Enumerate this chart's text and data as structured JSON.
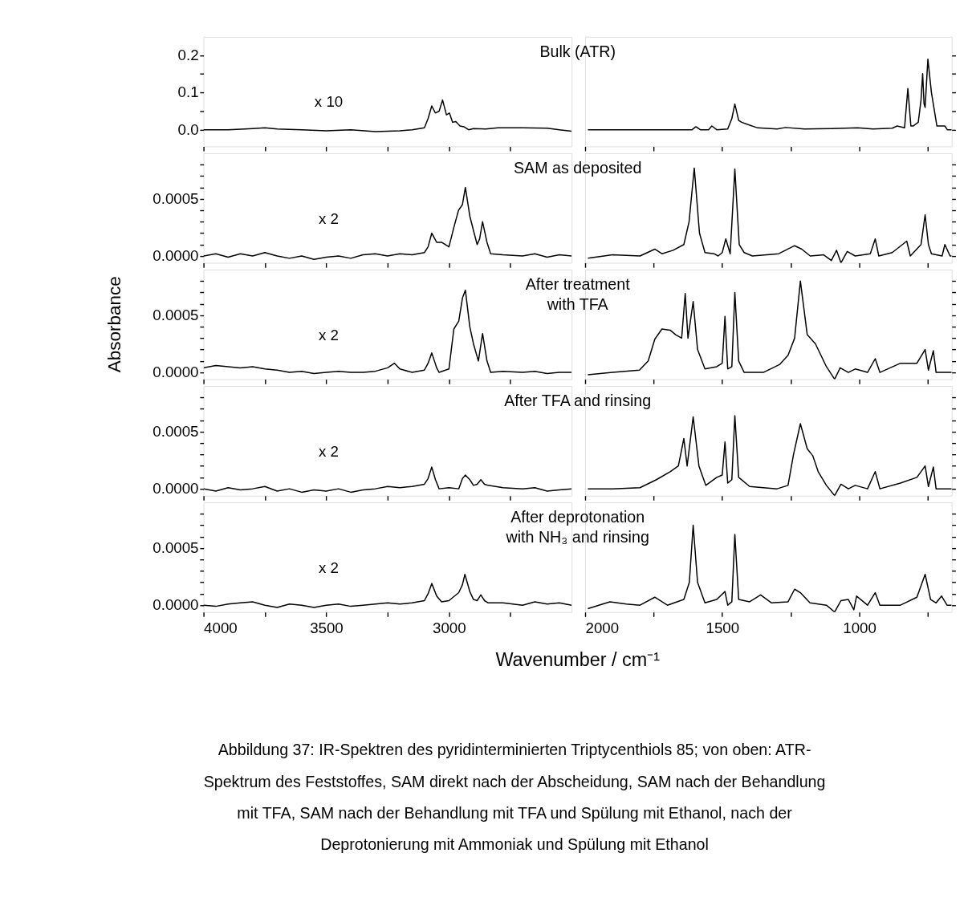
{
  "chart_data": [
    {
      "type": "line",
      "color": "#000000",
      "annotations": [
        "x 10"
      ],
      "tick_labels": "y",
      "xlim": [
        4000,
        2500
      ],
      "xticks": [
        4000,
        {
          "value": 3750,
          "label": null
        },
        3500,
        {
          "value": 3250,
          "label": null
        },
        3000,
        {
          "value": 2750,
          "label": null
        }
      ],
      "ylim": [
        -0.045,
        0.25
      ],
      "yticks": [
        {
          "value": 0,
          "label": "0.0"
        },
        {
          "value": 0.05,
          "label": null
        },
        {
          "value": 0.1,
          "label": "0.1"
        },
        {
          "value": 0.15,
          "label": null
        },
        {
          "value": 0.2,
          "label": "0.2"
        }
      ],
      "x": [
        4000,
        3900,
        3800,
        3750,
        3700,
        3600,
        3500,
        3400,
        3300,
        3200,
        3150,
        3100,
        3085,
        3070,
        3055,
        3040,
        3026,
        3010,
        2998,
        2985,
        2972,
        2955,
        2939,
        2920,
        2900,
        2850,
        2800,
        2700,
        2600,
        2550,
        2500
      ],
      "values": [
        0.0,
        0.0,
        0.003,
        0.005,
        0.002,
        0.0,
        -0.003,
        0.0,
        -0.005,
        -0.003,
        0.0,
        0.005,
        0.03,
        0.064,
        0.045,
        0.05,
        0.08,
        0.04,
        0.045,
        0.02,
        0.022,
        0.01,
        0.008,
        0.0,
        0.003,
        0.002,
        0.005,
        0.005,
        0.004,
        0.0,
        -0.004
      ]
    },
    {
      "type": "line",
      "color": "#000000",
      "title": "Bulk (ATR)",
      "tick_labels": false,
      "xlim": [
        2000,
        663
      ],
      "xticks": [
        2000,
        {
          "value": 1750,
          "label": null
        },
        1500,
        {
          "value": 1250,
          "label": null
        },
        1000,
        {
          "value": 750,
          "label": null
        }
      ],
      "ylim": [
        -0.045,
        0.25
      ],
      "yticks": [
        0,
        0.05,
        0.1,
        0.15,
        0.2
      ],
      "x": [
        1990,
        1800,
        1700,
        1610,
        1596,
        1580,
        1550,
        1538,
        1520,
        1480,
        1465,
        1454,
        1440,
        1429,
        1410,
        1371,
        1300,
        1269,
        1200,
        1100,
        1006,
        950,
        880,
        862,
        835,
        823,
        812,
        804,
        785,
        775,
        769,
        764,
        760,
        750,
        737,
        717,
        688,
        679,
        663
      ],
      "values": [
        0.0,
        0.0,
        0.0,
        0.0,
        0.008,
        0.0,
        0.0,
        0.01,
        0.0,
        0.002,
        0.03,
        0.069,
        0.025,
        0.02,
        0.015,
        0.005,
        0.002,
        0.006,
        0.002,
        0.003,
        0.005,
        0.002,
        0.004,
        0.01,
        0.005,
        0.111,
        0.01,
        0.01,
        0.02,
        0.08,
        0.151,
        0.07,
        0.06,
        0.19,
        0.1,
        0.01,
        0.01,
        0.0,
        0.0
      ]
    },
    {
      "type": "line",
      "color": "#000000",
      "annotations": [
        "x 2"
      ],
      "tick_labels": "y",
      "xlim": [
        4000,
        2500
      ],
      "xticks": [
        4000,
        {
          "value": 3750,
          "label": null
        },
        3500,
        {
          "value": 3250,
          "label": null
        },
        3000,
        {
          "value": 2750,
          "label": null
        }
      ],
      "ylim": [
        -6e-05,
        0.0009
      ],
      "yticks": [
        {
          "value": 0,
          "label": "0.0000"
        },
        {
          "value": 0.0001,
          "label": null
        },
        {
          "value": 0.0002,
          "label": null
        },
        {
          "value": 0.0003,
          "label": null
        },
        {
          "value": 0.0004,
          "label": null
        },
        {
          "value": 0.0005,
          "label": "0.0005"
        },
        {
          "value": 0.0006,
          "label": null
        },
        {
          "value": 0.0007,
          "label": null
        },
        {
          "value": 0.0008,
          "label": null
        }
      ],
      "x": [
        4000,
        3950,
        3900,
        3850,
        3800,
        3750,
        3700,
        3650,
        3600,
        3550,
        3500,
        3450,
        3400,
        3350,
        3300,
        3250,
        3200,
        3150,
        3100,
        3085,
        3070,
        3050,
        3030,
        3000,
        2980,
        2961,
        2945,
        2933,
        2915,
        2896,
        2885,
        2875,
        2863,
        2845,
        2830,
        2780,
        2700,
        2650,
        2600,
        2550,
        2500
      ],
      "values": [
        0.0,
        2e-05,
        -1e-05,
        2e-05,
        0.0,
        3e-05,
        0.0,
        -2e-05,
        0.0,
        -3e-05,
        -1e-05,
        0.0,
        -2e-05,
        1e-05,
        2e-05,
        0.0,
        2e-05,
        1e-05,
        3e-05,
        8e-05,
        0.0002,
        0.00012,
        0.00012,
        8e-05,
        0.00025,
        0.0004,
        0.00045,
        0.0006,
        0.00035,
        0.00019,
        0.0001,
        0.00015,
        0.0003,
        0.00012,
        2e-05,
        1e-05,
        0.0,
        2e-05,
        -1e-05,
        1e-05,
        0.0
      ]
    },
    {
      "type": "line",
      "color": "#000000",
      "title": "SAM as deposited",
      "tick_labels": false,
      "xlim": [
        2000,
        663
      ],
      "xticks": [
        2000,
        {
          "value": 1750,
          "label": null
        },
        1500,
        {
          "value": 1250,
          "label": null
        },
        1000,
        {
          "value": 750,
          "label": null
        }
      ],
      "ylim": [
        -6e-05,
        0.0009
      ],
      "yticks": [
        0,
        0.0001,
        0.0002,
        0.0003,
        0.0004,
        0.0005,
        0.0006,
        0.0007,
        0.0008
      ],
      "x": [
        1990,
        1900,
        1800,
        1746,
        1720,
        1679,
        1640,
        1621,
        1602,
        1583,
        1563,
        1530,
        1515,
        1500,
        1487,
        1471,
        1454,
        1438,
        1420,
        1390,
        1294,
        1236,
        1210,
        1179,
        1130,
        1102,
        1083,
        1067,
        1044,
        1015,
        960,
        942,
        929,
        880,
        827,
        814,
        775,
        760,
        748,
        737,
        698,
        688,
        669,
        663
      ],
      "values": [
        -2e-05,
        1e-05,
        0.0,
        6e-05,
        2e-05,
        5e-05,
        0.0001,
        0.0003,
        0.00077,
        0.0002,
        3e-05,
        2e-05,
        0.0,
        3e-05,
        0.00015,
        2e-05,
        0.00076,
        0.0001,
        3e-05,
        0.0,
        2e-05,
        9e-05,
        6e-05,
        0.0,
        1e-05,
        -4e-05,
        5e-05,
        -6e-05,
        4e-05,
        0.0,
        2e-05,
        0.00015,
        0.0,
        3e-05,
        0.00013,
        0.0,
        0.0001,
        0.00036,
        0.0001,
        2e-05,
        0.0,
        0.0001,
        0.0,
        0.0
      ]
    },
    {
      "type": "line",
      "color": "#000000",
      "annotations": [
        "x 2"
      ],
      "ylabel": "Absorbance",
      "tick_labels": "y",
      "xlim": [
        4000,
        2500
      ],
      "xticks": [
        4000,
        {
          "value": 3750,
          "label": null
        },
        3500,
        {
          "value": 3250,
          "label": null
        },
        3000,
        {
          "value": 2750,
          "label": null
        }
      ],
      "ylim": [
        -6e-05,
        0.0009
      ],
      "yticks": [
        {
          "value": 0,
          "label": "0.0000"
        },
        {
          "value": 0.0001,
          "label": null
        },
        {
          "value": 0.0002,
          "label": null
        },
        {
          "value": 0.0003,
          "label": null
        },
        {
          "value": 0.0004,
          "label": null
        },
        {
          "value": 0.0005,
          "label": "0.0005"
        },
        {
          "value": 0.0006,
          "label": null
        },
        {
          "value": 0.0007,
          "label": null
        },
        {
          "value": 0.0008,
          "label": null
        }
      ],
      "x": [
        4000,
        3950,
        3900,
        3850,
        3800,
        3750,
        3700,
        3650,
        3600,
        3550,
        3500,
        3450,
        3400,
        3350,
        3300,
        3250,
        3222,
        3200,
        3150,
        3100,
        3085,
        3070,
        3050,
        3040,
        3000,
        2980,
        2960,
        2945,
        2933,
        2915,
        2900,
        2880,
        2863,
        2845,
        2830,
        2780,
        2700,
        2650,
        2600,
        2550,
        2500
      ],
      "values": [
        4e-05,
        6e-05,
        5e-05,
        4e-05,
        5e-05,
        3e-05,
        2e-05,
        0.0,
        1e-05,
        -1e-05,
        0.0,
        1e-05,
        0.0,
        0.0,
        1e-05,
        4e-05,
        8e-05,
        3e-05,
        0.0,
        2e-05,
        8e-05,
        0.00017,
        4e-05,
        0.0,
        3e-05,
        0.00038,
        0.00045,
        0.00065,
        0.00072,
        0.0004,
        0.00025,
        0.0001,
        0.00034,
        0.0001,
        0.0,
        1e-05,
        0.0,
        1e-05,
        -1e-05,
        0.0,
        0.0
      ]
    },
    {
      "type": "line",
      "color": "#000000",
      "title": "After treatment\nwith TFA",
      "tick_labels": false,
      "xlim": [
        2000,
        663
      ],
      "xticks": [
        2000,
        {
          "value": 1750,
          "label": null
        },
        1500,
        {
          "value": 1250,
          "label": null
        },
        1000,
        {
          "value": 750,
          "label": null
        }
      ],
      "ylim": [
        -6e-05,
        0.0009
      ],
      "yticks": [
        0,
        0.0001,
        0.0002,
        0.0003,
        0.0004,
        0.0005,
        0.0006,
        0.0007,
        0.0008
      ],
      "x": [
        1990,
        1900,
        1802,
        1770,
        1746,
        1720,
        1690,
        1670,
        1648,
        1635,
        1625,
        1606,
        1590,
        1563,
        1520,
        1500,
        1490,
        1480,
        1465,
        1454,
        1440,
        1420,
        1350,
        1290,
        1260,
        1236,
        1215,
        1190,
        1160,
        1120,
        1090,
        1070,
        1040,
        1015,
        970,
        942,
        925,
        850,
        790,
        760,
        748,
        730,
        720,
        680,
        663
      ],
      "values": [
        -2e-05,
        0.0,
        2e-05,
        0.0001,
        0.00029,
        0.00038,
        0.00037,
        0.00033,
        0.0003,
        0.00069,
        0.0003,
        0.00062,
        0.0002,
        3e-05,
        5e-05,
        8e-05,
        0.00049,
        3e-05,
        5e-05,
        0.0007,
        0.0001,
        0.0,
        0.0,
        7e-05,
        0.00015,
        0.0003,
        0.0008,
        0.00033,
        0.00025,
        5e-05,
        -6e-05,
        4e-05,
        0.0,
        3e-05,
        0.0,
        0.00012,
        0.0,
        8e-05,
        8e-05,
        0.0002,
        2e-05,
        0.00019,
        0.0,
        0.0,
        0.0
      ]
    },
    {
      "type": "line",
      "color": "#000000",
      "annotations": [
        "x 2"
      ],
      "tick_labels": "y",
      "xlim": [
        4000,
        2500
      ],
      "xticks": [
        4000,
        {
          "value": 3750,
          "label": null
        },
        3500,
        {
          "value": 3250,
          "label": null
        },
        3000,
        {
          "value": 2750,
          "label": null
        }
      ],
      "ylim": [
        -6e-05,
        0.0009
      ],
      "yticks": [
        {
          "value": 0,
          "label": "0.0000"
        },
        {
          "value": 0.0001,
          "label": null
        },
        {
          "value": 0.0002,
          "label": null
        },
        {
          "value": 0.0003,
          "label": null
        },
        {
          "value": 0.0004,
          "label": null
        },
        {
          "value": 0.0005,
          "label": "0.0005"
        },
        {
          "value": 0.0006,
          "label": null
        },
        {
          "value": 0.0007,
          "label": null
        },
        {
          "value": 0.0008,
          "label": null
        }
      ],
      "x": [
        4000,
        3950,
        3900,
        3850,
        3800,
        3750,
        3700,
        3650,
        3600,
        3550,
        3500,
        3450,
        3400,
        3350,
        3300,
        3250,
        3200,
        3150,
        3100,
        3085,
        3070,
        3055,
        3040,
        3000,
        2960,
        2945,
        2933,
        2915,
        2900,
        2885,
        2870,
        2855,
        2840,
        2780,
        2700,
        2650,
        2600,
        2550,
        2500
      ],
      "values": [
        0.0,
        -2e-05,
        1e-05,
        -1e-05,
        0.0,
        2e-05,
        -2e-05,
        0.0,
        -3e-05,
        -1e-05,
        -2e-05,
        0.0,
        -3e-05,
        -1e-05,
        0.0,
        2e-05,
        1e-05,
        2e-05,
        4e-05,
        9e-05,
        0.00019,
        8e-05,
        0.0,
        1e-05,
        0.0,
        9e-05,
        0.00012,
        8e-05,
        3e-05,
        4e-05,
        8e-05,
        4e-05,
        3e-05,
        1e-05,
        0.0,
        1e-05,
        -2e-05,
        -1e-05,
        0.0
      ]
    },
    {
      "type": "line",
      "color": "#000000",
      "title": "After TFA and rinsing",
      "tick_labels": false,
      "xlim": [
        2000,
        663
      ],
      "xticks": [
        2000,
        {
          "value": 1750,
          "label": null
        },
        1500,
        {
          "value": 1250,
          "label": null
        },
        1000,
        {
          "value": 750,
          "label": null
        }
      ],
      "ylim": [
        -6e-05,
        0.0009
      ],
      "yticks": [
        0,
        0.0001,
        0.0002,
        0.0003,
        0.0004,
        0.0005,
        0.0006,
        0.0007,
        0.0008
      ],
      "x": [
        1990,
        1900,
        1800,
        1740,
        1690,
        1660,
        1640,
        1628,
        1606,
        1585,
        1560,
        1520,
        1500,
        1490,
        1480,
        1465,
        1454,
        1440,
        1400,
        1300,
        1260,
        1240,
        1215,
        1190,
        1170,
        1150,
        1120,
        1090,
        1067,
        1040,
        1015,
        970,
        942,
        925,
        850,
        790,
        760,
        748,
        730,
        720,
        680,
        663
      ],
      "values": [
        0.0,
        0.0,
        1e-05,
        8e-05,
        0.00015,
        0.0002,
        0.00044,
        0.0002,
        0.00063,
        0.0002,
        3e-05,
        0.0001,
        0.00012,
        0.00041,
        5e-05,
        8e-05,
        0.00064,
        0.0001,
        2e-05,
        0.0,
        3e-05,
        0.0003,
        0.00057,
        0.00035,
        0.00029,
        0.00015,
        3e-05,
        -6e-05,
        4e-05,
        0.0,
        3e-05,
        0.0,
        0.00015,
        0.0,
        5e-05,
        0.0001,
        0.0002,
        2e-05,
        0.00019,
        0.0,
        0.0,
        0.0
      ]
    },
    {
      "type": "line",
      "color": "#000000",
      "annotations": [
        "x 2"
      ],
      "xlim": [
        4000,
        2500
      ],
      "xticks": [
        4000,
        {
          "value": 3750,
          "label": null
        },
        3500,
        {
          "value": 3250,
          "label": null
        },
        3000,
        {
          "value": 2750,
          "label": null
        }
      ],
      "ylim": [
        -6e-05,
        0.0009
      ],
      "yticks": [
        {
          "value": 0,
          "label": "0.0000"
        },
        {
          "value": 0.0001,
          "label": null
        },
        {
          "value": 0.0002,
          "label": null
        },
        {
          "value": 0.0003,
          "label": null
        },
        {
          "value": 0.0004,
          "label": null
        },
        {
          "value": 0.0005,
          "label": "0.0005"
        },
        {
          "value": 0.0006,
          "label": null
        },
        {
          "value": 0.0007,
          "label": null
        },
        {
          "value": 0.0008,
          "label": null
        }
      ],
      "x": [
        4000,
        3950,
        3900,
        3850,
        3800,
        3750,
        3700,
        3650,
        3600,
        3550,
        3500,
        3450,
        3400,
        3350,
        3300,
        3250,
        3200,
        3150,
        3100,
        3085,
        3070,
        3050,
        3030,
        3000,
        2960,
        2945,
        2935,
        2915,
        2900,
        2885,
        2870,
        2855,
        2840,
        2780,
        2700,
        2650,
        2600,
        2550,
        2500
      ],
      "values": [
        0.0,
        -1e-05,
        1e-05,
        2e-05,
        3e-05,
        0.0,
        -2e-05,
        1e-05,
        0.0,
        -2e-05,
        0.0,
        1e-05,
        -1e-05,
        0.0,
        1e-05,
        2e-05,
        1e-05,
        2e-05,
        4e-05,
        0.0001,
        0.00019,
        8e-05,
        3e-05,
        4e-05,
        0.00011,
        0.00018,
        0.00027,
        0.00012,
        5e-05,
        4e-05,
        9e-05,
        4e-05,
        2e-05,
        2e-05,
        0.0,
        3e-05,
        1e-05,
        2e-05,
        0.0
      ]
    },
    {
      "type": "line",
      "color": "#000000",
      "title": "After deprotonation\nwith NH₃ and rinsing",
      "xlabel": "Wavenumber / cm⁻¹",
      "annotations": [
        "Abbildung 37: IR-Spektren des pyridinterminierten Triptycenthiols 85; von oben: ATR-",
        "Spektrum des Feststoffes, SAM direkt nach der Abscheidung, SAM nach der Behandlung",
        "mit TFA, SAM nach der Behandlung mit TFA und Spülung mit Ethanol, nach der",
        "Deprotonierung mit Ammoniak und Spülung mit Ethanol"
      ],
      "tick_labels": "x",
      "xlim": [
        2000,
        663
      ],
      "xticks": [
        2000,
        {
          "value": 1750,
          "label": null
        },
        1500,
        {
          "value": 1250,
          "label": null
        },
        1000,
        {
          "value": 750,
          "label": null
        }
      ],
      "ylim": [
        -6e-05,
        0.0009
      ],
      "yticks": [
        0,
        0.0001,
        0.0002,
        0.0003,
        0.0004,
        0.0005,
        0.0006,
        0.0007,
        0.0008
      ],
      "x": [
        1990,
        1950,
        1910,
        1850,
        1800,
        1746,
        1700,
        1640,
        1620,
        1606,
        1590,
        1563,
        1520,
        1490,
        1480,
        1465,
        1454,
        1440,
        1400,
        1360,
        1320,
        1260,
        1236,
        1215,
        1180,
        1120,
        1090,
        1067,
        1040,
        1020,
        1010,
        970,
        942,
        925,
        850,
        790,
        760,
        740,
        720,
        700,
        680,
        663
      ],
      "values": [
        -3e-05,
        0.0,
        3e-05,
        1e-05,
        0.0,
        7e-05,
        0.0,
        5e-05,
        0.0002,
        0.0007,
        0.0002,
        2e-05,
        5e-05,
        0.00012,
        0.0,
        3e-05,
        0.00062,
        5e-05,
        3e-05,
        9e-05,
        2e-05,
        3e-05,
        0.00014,
        0.00011,
        2e-05,
        0.0,
        -6e-05,
        4e-05,
        5e-05,
        -4e-05,
        8e-05,
        0.0,
        0.00011,
        0.0,
        0.0,
        7e-05,
        0.00027,
        5e-05,
        2e-05,
        8e-05,
        0.0,
        0.0
      ]
    }
  ]
}
